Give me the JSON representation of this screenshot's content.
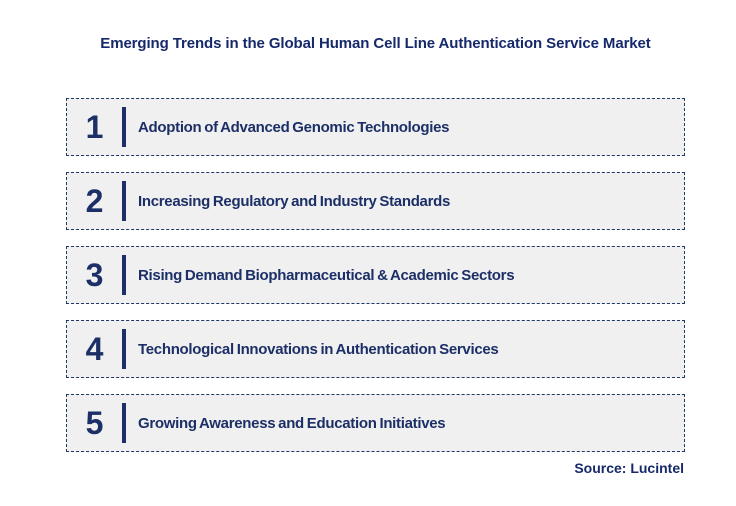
{
  "title": "Emerging Trends in the Global Human Cell Line Authentication Service Market",
  "trends": [
    {
      "number": "1",
      "label": "Adoption of Advanced Genomic Technologies"
    },
    {
      "number": "2",
      "label": "Increasing Regulatory and Industry Standards"
    },
    {
      "number": "3",
      "label": "Rising Demand Biopharmaceutical & Academic Sectors"
    },
    {
      "number": "4",
      "label": "Technological Innovations in Authentication Services"
    },
    {
      "number": "5",
      "label": "Growing Awareness and Education Initiatives"
    }
  ],
  "source": "Source: Lucintel",
  "colors": {
    "navy_text": "#1c2f66",
    "title_navy": "#16296b",
    "box_background": "#f0f0f1",
    "box_border": "#1f3864",
    "page_background": "#ffffff"
  }
}
